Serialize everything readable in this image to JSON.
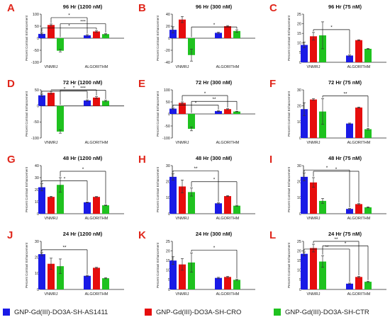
{
  "series": [
    {
      "name": "GNP-Gd(III)-DO3A-SH-AS1411",
      "color": "#1a1ae6"
    },
    {
      "name": "GNP-Gd(III)-DO3A-SH-CRO",
      "color": "#e60d0d"
    },
    {
      "name": "GNP-Gd(III)-DO3A-SH-CTR",
      "color": "#1fc21f"
    }
  ],
  "colors": {
    "axis": "#222222",
    "errorbar": "#333333",
    "sigline": "#111111"
  },
  "chart_data": [
    {
      "type": "bar",
      "panel": "A",
      "title": "96 Hr (1200 nM)",
      "ylabel": "Percent Contrast Enhancement",
      "categories": [
        "VNMRJ",
        "ALGORITHM"
      ],
      "ylim": [
        -100,
        100
      ],
      "yticks": [
        -100,
        -50,
        0,
        50,
        100
      ],
      "series": [
        {
          "values": [
            18,
            12
          ],
          "errors": [
            4,
            3
          ]
        },
        {
          "values": [
            55,
            28
          ],
          "errors": [
            4,
            3
          ]
        },
        {
          "values": [
            -52,
            17
          ],
          "errors": [
            5,
            2
          ]
        }
      ],
      "significance": [
        {
          "from": [
            0,
            0
          ],
          "to": [
            1,
            1
          ],
          "label": "*"
        },
        {
          "from": [
            0,
            1
          ],
          "to": [
            1,
            0
          ],
          "label": "*"
        },
        {
          "from": [
            0,
            2
          ],
          "to": [
            1,
            2
          ],
          "label": "***"
        }
      ]
    },
    {
      "type": "bar",
      "panel": "B",
      "title": "96 Hr (300 nM)",
      "ylabel": "Percent Contrast Enhancement",
      "categories": [
        "VNMRJ",
        "ALGORITHM"
      ],
      "ylim": [
        -40,
        40
      ],
      "yticks": [
        -40,
        -20,
        0,
        20,
        40
      ],
      "series": [
        {
          "values": [
            14,
            9
          ],
          "errors": [
            5,
            1
          ]
        },
        {
          "values": [
            31,
            20
          ],
          "errors": [
            5,
            1
          ]
        },
        {
          "values": [
            -28,
            12
          ],
          "errors": [
            10,
            2
          ]
        }
      ],
      "significance": [
        {
          "from": [
            0,
            2
          ],
          "to": [
            1,
            2
          ],
          "label": "*"
        }
      ]
    },
    {
      "type": "bar",
      "panel": "C",
      "title": "96 Hr (75 nM)",
      "ylabel": "Percent Contrast Enhancement",
      "categories": [
        "VNMRJ",
        "ALGORITHM"
      ],
      "ylim": [
        0,
        25
      ],
      "yticks": [
        0,
        5,
        10,
        15,
        20,
        25
      ],
      "series": [
        {
          "values": [
            9,
            3.5
          ],
          "errors": [
            1.5,
            0.3
          ]
        },
        {
          "values": [
            13.5,
            11.5
          ],
          "errors": [
            2,
            0.2
          ]
        },
        {
          "values": [
            14,
            7
          ],
          "errors": [
            7,
            0.2
          ]
        }
      ],
      "significance": [
        {
          "from": [
            0,
            1
          ],
          "to": [
            1,
            0
          ],
          "label": "*"
        }
      ]
    },
    {
      "type": "bar",
      "panel": "D",
      "title": "72 Hr (1200 nM)",
      "ylabel": "Percent Contrast Enhancement",
      "categories": [
        "VNMRJ",
        "ALGORITHM"
      ],
      "ylim": [
        -100,
        50
      ],
      "yticks": [
        -100,
        -50,
        0,
        50
      ],
      "series": [
        {
          "values": [
            33,
            17
          ],
          "errors": [
            4,
            2
          ]
        },
        {
          "values": [
            41,
            26
          ],
          "errors": [
            4,
            3
          ]
        },
        {
          "values": [
            -80,
            16
          ],
          "errors": [
            5,
            2
          ]
        }
      ],
      "significance": [
        {
          "from": [
            0,
            0
          ],
          "to": [
            1,
            0
          ],
          "label": "*"
        },
        {
          "from": [
            0,
            1
          ],
          "to": [
            1,
            1
          ],
          "label": "*"
        },
        {
          "from": [
            0,
            2
          ],
          "to": [
            1,
            2
          ],
          "label": "***"
        }
      ]
    },
    {
      "type": "bar",
      "panel": "E",
      "title": "72 Hr (300 nM)",
      "ylabel": "Percent Contrast Enhancement",
      "categories": [
        "VNMRJ",
        "ALGORITHM"
      ],
      "ylim": [
        -100,
        100
      ],
      "yticks": [
        -100,
        -50,
        0,
        50,
        100
      ],
      "series": [
        {
          "values": [
            22,
            12
          ],
          "errors": [
            3,
            2
          ]
        },
        {
          "values": [
            46,
            20
          ],
          "errors": [
            4,
            2
          ]
        },
        {
          "values": [
            -62,
            10
          ],
          "errors": [
            8,
            1
          ]
        }
      ],
      "significance": [
        {
          "from": [
            0,
            0
          ],
          "to": [
            1,
            0
          ],
          "label": "*"
        },
        {
          "from": [
            0,
            1
          ],
          "to": [
            1,
            1
          ],
          "label": "*"
        },
        {
          "from": [
            0,
            2
          ],
          "to": [
            1,
            2
          ],
          "label": "**"
        }
      ]
    },
    {
      "type": "bar",
      "panel": "F",
      "title": "72 Hr (75 nM)",
      "ylabel": "Percent Contrast Enhancement",
      "categories": [
        "VNMRJ",
        "ALGORITHM"
      ],
      "ylim": [
        0,
        30
      ],
      "yticks": [
        0,
        10,
        20,
        30
      ],
      "series": [
        {
          "values": [
            18,
            9
          ],
          "errors": [
            4,
            0.3
          ]
        },
        {
          "values": [
            24,
            19
          ],
          "errors": [
            0.5,
            0.3
          ]
        },
        {
          "values": [
            16.5,
            5.5
          ],
          "errors": [
            8,
            0.5
          ]
        }
      ],
      "significance": [
        {
          "from": [
            0,
            2
          ],
          "to": [
            1,
            2
          ],
          "label": "**"
        }
      ]
    },
    {
      "type": "bar",
      "panel": "G",
      "title": "48 Hr (1200 nM)",
      "ylabel": "Percent Contrast Enhancement",
      "categories": [
        "VNMRJ",
        "ALGORITHM"
      ],
      "ylim": [
        0,
        40
      ],
      "yticks": [
        0,
        10,
        20,
        30,
        40
      ],
      "series": [
        {
          "values": [
            22,
            9.5
          ],
          "errors": [
            3,
            0.3
          ]
        },
        {
          "values": [
            14,
            14
          ],
          "errors": [
            0.5,
            0.3
          ]
        },
        {
          "values": [
            24,
            7
          ],
          "errors": [
            6,
            0.3
          ]
        }
      ],
      "significance": [
        {
          "from": [
            0,
            0
          ],
          "to": [
            1,
            0
          ],
          "label": "*"
        },
        {
          "from": [
            0,
            2
          ],
          "to": [
            1,
            2
          ],
          "label": "*"
        }
      ]
    },
    {
      "type": "bar",
      "panel": "H",
      "title": "48 Hr (300 nM)",
      "ylabel": "Percent Contrast Enhancement",
      "categories": [
        "VNMRJ",
        "ALGORITHM"
      ],
      "ylim": [
        0,
        30
      ],
      "yticks": [
        0,
        10,
        20,
        30
      ],
      "series": [
        {
          "values": [
            23,
            6.5
          ],
          "errors": [
            2,
            0.3
          ]
        },
        {
          "values": [
            17,
            11
          ],
          "errors": [
            4,
            0.3
          ]
        },
        {
          "values": [
            13.5,
            5
          ],
          "errors": [
            2.5,
            0.3
          ]
        }
      ],
      "significance": [
        {
          "from": [
            0,
            0
          ],
          "to": [
            1,
            0
          ],
          "label": "**"
        },
        {
          "from": [
            0,
            2
          ],
          "to": [
            1,
            2
          ],
          "label": "*"
        }
      ]
    },
    {
      "type": "bar",
      "panel": "I",
      "title": "48 Hr (75 nM)",
      "ylabel": "Percent Contrast Enhancement",
      "categories": [
        "VNMRJ",
        "ALGORITHM"
      ],
      "ylim": [
        0,
        30
      ],
      "yticks": [
        0,
        10,
        20,
        30
      ],
      "series": [
        {
          "values": [
            23,
            3
          ],
          "errors": [
            2.5,
            0.3
          ]
        },
        {
          "values": [
            19.5,
            6
          ],
          "errors": [
            3,
            0.3
          ]
        },
        {
          "values": [
            8,
            4
          ],
          "errors": [
            1.5,
            0.3
          ]
        }
      ],
      "significance": [
        {
          "from": [
            0,
            0
          ],
          "to": [
            1,
            0
          ],
          "label": "*"
        },
        {
          "from": [
            0,
            1
          ],
          "to": [
            1,
            1
          ],
          "label": "*"
        }
      ]
    },
    {
      "type": "bar",
      "panel": "J",
      "title": "24 Hr (1200 nM)",
      "ylabel": "Percent Contrast Enhancement",
      "categories": [
        "VNMRJ",
        "ALGORITHM"
      ],
      "ylim": [
        0,
        30
      ],
      "yticks": [
        0,
        10,
        20,
        30
      ],
      "series": [
        {
          "values": [
            22,
            8.5
          ],
          "errors": [
            1,
            0.3
          ]
        },
        {
          "values": [
            16,
            13.5
          ],
          "errors": [
            3.5,
            0.3
          ]
        },
        {
          "values": [
            14.5,
            7
          ],
          "errors": [
            4.5,
            0.3
          ]
        }
      ],
      "significance": [
        {
          "from": [
            0,
            0
          ],
          "to": [
            1,
            0
          ],
          "label": "**"
        }
      ]
    },
    {
      "type": "bar",
      "panel": "K",
      "title": "24 Hr (300 nM)",
      "ylabel": "Percent Contrast Enhancement",
      "categories": [
        "VNMRJ",
        "ALGORITHM"
      ],
      "ylim": [
        0,
        25
      ],
      "yticks": [
        0,
        5,
        10,
        15,
        20,
        25
      ],
      "series": [
        {
          "values": [
            15,
            6
          ],
          "errors": [
            2,
            0.3
          ]
        },
        {
          "values": [
            13,
            6.5
          ],
          "errors": [
            3,
            0.3
          ]
        },
        {
          "values": [
            14,
            5
          ],
          "errors": [
            5,
            0.3
          ]
        }
      ],
      "significance": [
        {
          "from": [
            0,
            2
          ],
          "to": [
            1,
            2
          ],
          "label": "*"
        }
      ]
    },
    {
      "type": "bar",
      "panel": "L",
      "title": "24 Hr (75 nM)",
      "ylabel": "Percent Contrast Enhancement",
      "categories": [
        "VNMRJ",
        "ALGORITHM"
      ],
      "ylim": [
        0,
        25
      ],
      "yticks": [
        0,
        5,
        10,
        15,
        20,
        25
      ],
      "series": [
        {
          "values": [
            18.5,
            3
          ],
          "errors": [
            1,
            0.3
          ]
        },
        {
          "values": [
            21.5,
            6.5
          ],
          "errors": [
            2,
            0.3
          ]
        },
        {
          "values": [
            14.5,
            4
          ],
          "errors": [
            3,
            0.3
          ]
        }
      ],
      "significance": [
        {
          "from": [
            0,
            0
          ],
          "to": [
            1,
            0
          ],
          "label": "**"
        },
        {
          "from": [
            0,
            1
          ],
          "to": [
            1,
            1
          ],
          "label": "**"
        },
        {
          "from": [
            0,
            2
          ],
          "to": [
            1,
            2
          ],
          "label": "*"
        }
      ]
    }
  ]
}
